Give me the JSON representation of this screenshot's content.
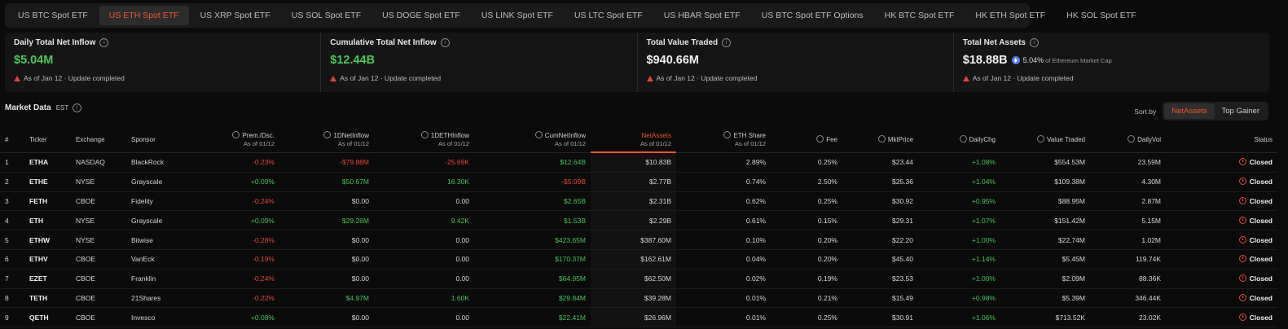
{
  "tabs": [
    {
      "label": "US BTC Spot ETF",
      "active": false
    },
    {
      "label": "US ETH Spot ETF",
      "active": true
    },
    {
      "label": "US XRP Spot ETF",
      "active": false
    },
    {
      "label": "US SOL Spot ETF",
      "active": false
    },
    {
      "label": "US DOGE Spot ETF",
      "active": false
    },
    {
      "label": "US LINK Spot ETF",
      "active": false
    },
    {
      "label": "US LTC Spot ETF",
      "active": false
    },
    {
      "label": "US HBAR Spot ETF",
      "active": false
    },
    {
      "label": "US BTC Spot ETF Options",
      "active": false
    },
    {
      "label": "HK BTC Spot ETF",
      "active": false
    },
    {
      "label": "HK ETH Spot ETF",
      "active": false
    },
    {
      "label": "HK SOL Spot ETF",
      "active": false
    }
  ],
  "cards": {
    "daily": {
      "title": "Daily Total Net Inflow",
      "value": "$5.04M",
      "note": "As of Jan 12 · Update completed"
    },
    "cumulative": {
      "title": "Cumulative Total Net Inflow",
      "value": "$12.44B",
      "note": "As of Jan 12 · Update completed"
    },
    "traded": {
      "title": "Total Value Traded",
      "value": "$940.66M",
      "note": "As of Jan 12 · Update completed"
    },
    "assets": {
      "title": "Total Net Assets",
      "value": "$18.88B",
      "share": "5.04%",
      "share_label": "of Ethereum Market Cap",
      "note": "As of Jan 12 · Update completed"
    }
  },
  "market": {
    "title": "Market Data",
    "tz": "EST"
  },
  "sort": {
    "label": "Sort by",
    "options": [
      "NetAssets",
      "Top Gainer"
    ],
    "active": "NetAssets"
  },
  "headers": {
    "num": "#",
    "ticker": "Ticker",
    "exchange": "Exchange",
    "sponsor": "Sponsor",
    "prem": "Prem./Dsc.",
    "flow": "1DNetInflow",
    "ethflow": "1DETHInflow",
    "cum": "CumNetInflow",
    "assets": "NetAssets",
    "share": "ETH Share",
    "fee": "Fee",
    "price": "MktPrice",
    "chg": "DailyChg",
    "value": "Value Traded",
    "vol": "DailyVol",
    "status": "Status",
    "asof": "As of 01/12"
  },
  "rows": [
    {
      "n": "1",
      "t": "ETHA",
      "e": "NASDAQ",
      "s": "BlackRock",
      "p": "-0.23%",
      "f": "-$79.88M",
      "ef": "-25.69K",
      "c": "$12.64B",
      "a": "$10.83B",
      "sh": "2.89%",
      "fee": "0.25%",
      "mp": "$23.44",
      "dc": "+1.08%",
      "vt": "$554.53M",
      "dv": "23.59M",
      "st": "Closed"
    },
    {
      "n": "2",
      "t": "ETHE",
      "e": "NYSE",
      "s": "Grayscale",
      "p": "+0.09%",
      "f": "$50.67M",
      "ef": "16.30K",
      "c": "-$5.09B",
      "a": "$2.77B",
      "sh": "0.74%",
      "fee": "2.50%",
      "mp": "$25.36",
      "dc": "+1.04%",
      "vt": "$109.38M",
      "dv": "4.30M",
      "st": "Closed"
    },
    {
      "n": "3",
      "t": "FETH",
      "e": "CBOE",
      "s": "Fidelity",
      "p": "-0.24%",
      "f": "$0.00",
      "ef": "0.00",
      "c": "$2.65B",
      "a": "$2.31B",
      "sh": "0.62%",
      "fee": "0.25%",
      "mp": "$30.92",
      "dc": "+0.95%",
      "vt": "$88.95M",
      "dv": "2.87M",
      "st": "Closed"
    },
    {
      "n": "4",
      "t": "ETH",
      "e": "NYSE",
      "s": "Grayscale",
      "p": "+0.09%",
      "f": "$29.28M",
      "ef": "9.42K",
      "c": "$1.53B",
      "a": "$2.29B",
      "sh": "0.61%",
      "fee": "0.15%",
      "mp": "$29.31",
      "dc": "+1.07%",
      "vt": "$151.42M",
      "dv": "5.15M",
      "st": "Closed"
    },
    {
      "n": "5",
      "t": "ETHW",
      "e": "NYSE",
      "s": "Bitwise",
      "p": "-0.28%",
      "f": "$0.00",
      "ef": "0.00",
      "c": "$423.65M",
      "a": "$387.60M",
      "sh": "0.10%",
      "fee": "0.20%",
      "mp": "$22.20",
      "dc": "+1.00%",
      "vt": "$22.74M",
      "dv": "1.02M",
      "st": "Closed"
    },
    {
      "n": "6",
      "t": "ETHV",
      "e": "CBOE",
      "s": "VanEck",
      "p": "-0.19%",
      "f": "$0.00",
      "ef": "0.00",
      "c": "$170.37M",
      "a": "$162.61M",
      "sh": "0.04%",
      "fee": "0.20%",
      "mp": "$45.40",
      "dc": "+1.14%",
      "vt": "$5.45M",
      "dv": "119.74K",
      "st": "Closed"
    },
    {
      "n": "7",
      "t": "EZET",
      "e": "CBOE",
      "s": "Franklin",
      "p": "-0.24%",
      "f": "$0.00",
      "ef": "0.00",
      "c": "$64.95M",
      "a": "$62.50M",
      "sh": "0.02%",
      "fee": "0.19%",
      "mp": "$23.53",
      "dc": "+1.00%",
      "vt": "$2.09M",
      "dv": "88.36K",
      "st": "Closed"
    },
    {
      "n": "8",
      "t": "TETH",
      "e": "CBOE",
      "s": "21Shares",
      "p": "-0.22%",
      "f": "$4.97M",
      "ef": "1.60K",
      "c": "$29.84M",
      "a": "$39.28M",
      "sh": "0.01%",
      "fee": "0.21%",
      "mp": "$15.49",
      "dc": "+0.98%",
      "vt": "$5.39M",
      "dv": "346.44K",
      "st": "Closed"
    },
    {
      "n": "9",
      "t": "QETH",
      "e": "CBOE",
      "s": "Invesco",
      "p": "+0.08%",
      "f": "$0.00",
      "ef": "0.00",
      "c": "$22.41M",
      "a": "$26.96M",
      "sh": "0.01%",
      "fee": "0.25%",
      "mp": "$30.91",
      "dc": "+1.06%",
      "vt": "$713.52K",
      "dv": "23.02K",
      "st": "Closed"
    }
  ]
}
